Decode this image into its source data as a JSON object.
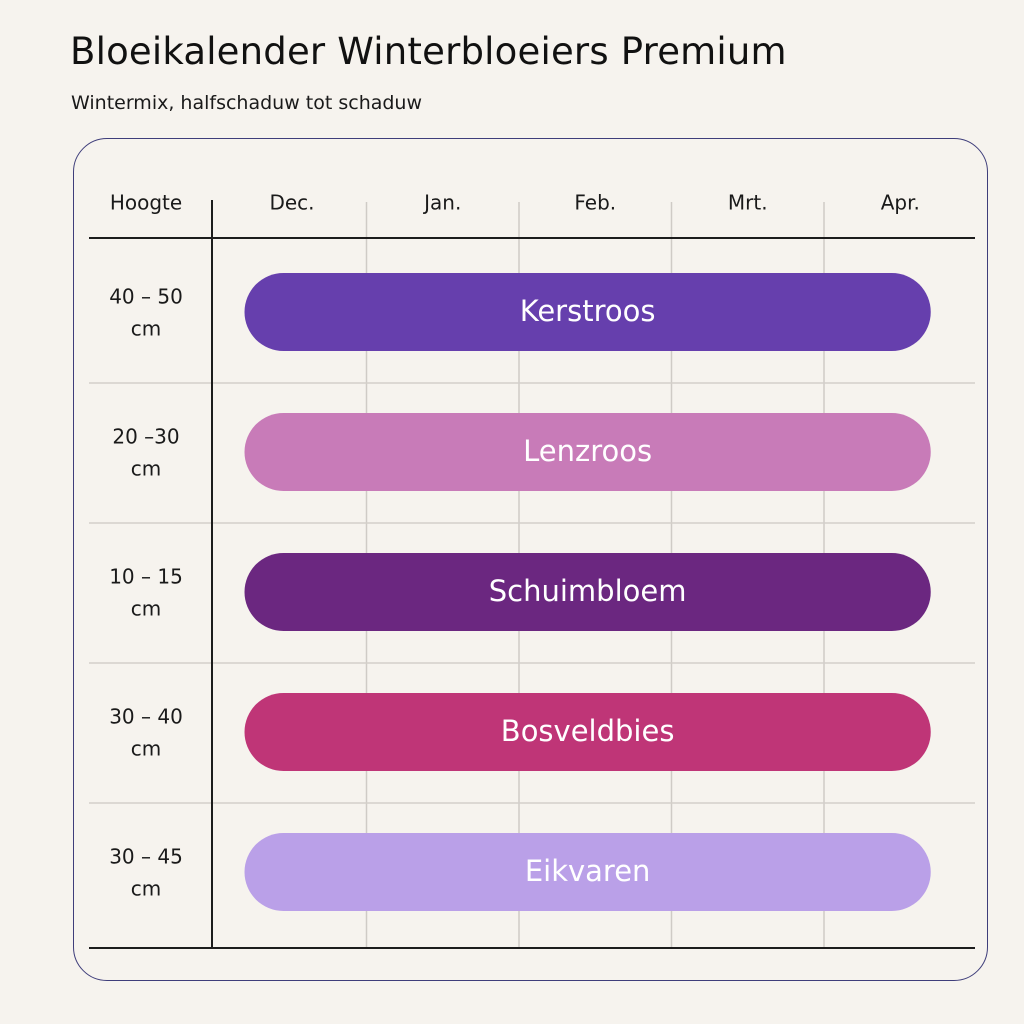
{
  "header": {
    "title": "Bloeikalender Winterbloeiers Premium",
    "subtitle": "Wintermix, halfschaduw tot schaduw"
  },
  "chart_data": {
    "type": "bar",
    "orientation": "horizontal-gantt",
    "title": "Bloeikalender Winterbloeiers Premium",
    "subtitle": "Wintermix, halfschaduw tot schaduw",
    "row_header": "Hoogte",
    "months": [
      "Dec.",
      "Jan.",
      "Feb.",
      "Mrt.",
      "Apr."
    ],
    "grid": true,
    "rows": [
      {
        "height_line1": "40 – 50",
        "height_line2": "cm",
        "plant": "Kerstroos",
        "start_month": "Dec.",
        "end_month": "Apr.",
        "start": 0.2,
        "end": 4.7,
        "color": "#663fad"
      },
      {
        "height_line1": "20 –30",
        "height_line2": "cm",
        "plant": "Lenzroos",
        "start_month": "Dec.",
        "end_month": "Apr.",
        "start": 0.2,
        "end": 4.7,
        "color": "#c87bb8"
      },
      {
        "height_line1": "10 – 15",
        "height_line2": "cm",
        "plant": "Schuimbloem",
        "start_month": "Dec.",
        "end_month": "Apr.",
        "start": 0.2,
        "end": 4.7,
        "color": "#6b2780"
      },
      {
        "height_line1": "30 – 40",
        "height_line2": "cm",
        "plant": "Bosveldbies",
        "start_month": "Dec.",
        "end_month": "Apr.",
        "start": 0.2,
        "end": 4.7,
        "color": "#bf3577"
      },
      {
        "height_line1": "30 – 45",
        "height_line2": "cm",
        "plant": "Eikvaren",
        "start_month": "Dec.",
        "end_month": "Apr.",
        "start": 0.2,
        "end": 4.7,
        "color": "#baa0e8"
      }
    ]
  }
}
